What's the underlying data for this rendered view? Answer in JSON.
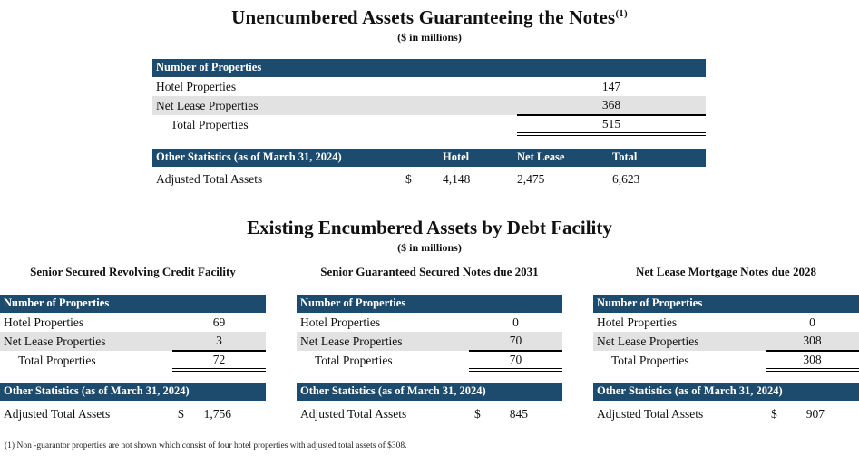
{
  "colors": {
    "header_bar": "#1d4b6e",
    "row_alt": "#e2e2e2"
  },
  "section1": {
    "title": "Unencumbered Assets Guaranteeing the Notes",
    "title_superscript": "(1)",
    "subtitle": "($ in millions)",
    "properties_table": {
      "header": "Number of Properties",
      "rows": [
        {
          "label": "Hotel Properties",
          "value": "147"
        },
        {
          "label": "Net Lease Properties",
          "value": "368"
        },
        {
          "label": "Total Properties",
          "value": "515"
        }
      ]
    },
    "stats_table": {
      "header": "Other Statistics (as of March 31, 2024)",
      "columns": {
        "hotel": "Hotel",
        "net_lease": "Net Lease",
        "total": "Total"
      },
      "row": {
        "label": "Adjusted Total Assets",
        "currency": "$",
        "hotel": "4,148",
        "net_lease": "2,475",
        "total": "6,623"
      }
    }
  },
  "section2": {
    "title": "Existing Encumbered Assets by Debt Facility",
    "subtitle": "($ in millions)",
    "panels": [
      {
        "title": "Senior Secured Revolving Credit Facility",
        "properties_table": {
          "header": "Number of Properties",
          "rows": [
            {
              "label": "Hotel Properties",
              "value": "69"
            },
            {
              "label": "Net Lease Properties",
              "value": "3"
            },
            {
              "label": "Total Properties",
              "value": "72"
            }
          ]
        },
        "stats_table": {
          "header": "Other Statistics (as of March 31, 2024)",
          "row": {
            "label": "Adjusted Total Assets",
            "currency": "$",
            "value": "1,756"
          }
        }
      },
      {
        "title": "Senior Guaranteed Secured Notes due 2031",
        "properties_table": {
          "header": "Number of Properties",
          "rows": [
            {
              "label": "Hotel Properties",
              "value": "0"
            },
            {
              "label": "Net Lease Properties",
              "value": "70"
            },
            {
              "label": "Total Properties",
              "value": "70"
            }
          ]
        },
        "stats_table": {
          "header": "Other Statistics (as of March 31, 2024)",
          "row": {
            "label": "Adjusted Total Assets",
            "currency": "$",
            "value": "845"
          }
        }
      },
      {
        "title": "Net Lease Mortgage Notes due 2028",
        "properties_table": {
          "header": "Number of Properties",
          "rows": [
            {
              "label": "Hotel Properties",
              "value": "0"
            },
            {
              "label": "Net Lease Properties",
              "value": "308"
            },
            {
              "label": "Total Properties",
              "value": "308"
            }
          ]
        },
        "stats_table": {
          "header": "Other Statistics (as of March 31, 2024)",
          "row": {
            "label": "Adjusted Total Assets",
            "currency": "$",
            "value": "907"
          }
        }
      }
    ]
  },
  "footnote": "(1) Non -guarantor properties are not shown which consist of four hotel properties with adjusted total assets of $308."
}
